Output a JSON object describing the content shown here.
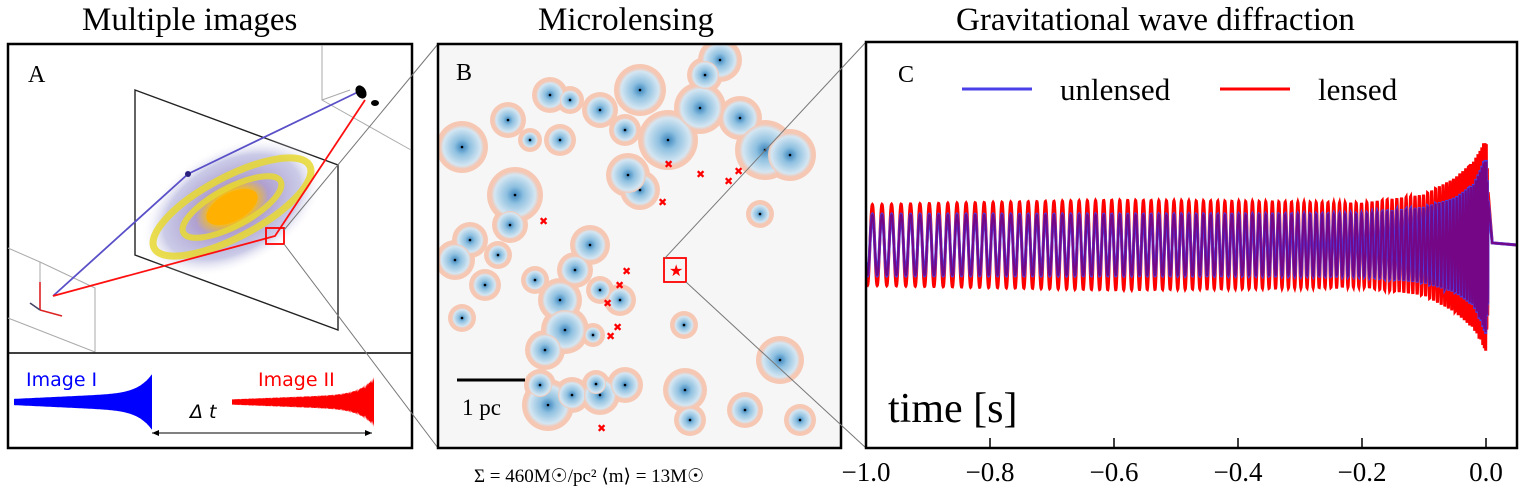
{
  "panels": {
    "a": {
      "title": "Multiple images",
      "letter": "A",
      "image1": "Image I",
      "image2": "Image II",
      "delta": "Δ t"
    },
    "b": {
      "title": "Microlensing",
      "letter": "B",
      "scale": "1 pc",
      "caption": "Σ = 460M☉/pc² ⟨m⟩ = 13M☉"
    },
    "c": {
      "title": "Gravitational wave diffraction",
      "letter": "C"
    }
  },
  "colors": {
    "unlensed": "#4b3fe8",
    "lensed": "#ff0000",
    "overlap": "#7a007a",
    "star_field": "#d6e8f4",
    "caustic": "#f08060"
  },
  "chart_data": {
    "type": "line",
    "title": "Gravitational wave diffraction",
    "xlabel": "time [s]",
    "ylabel": "",
    "xlim": [
      -1.0,
      0.05
    ],
    "xticks": [
      -1.0,
      -0.8,
      -0.6,
      -0.4,
      -0.2,
      0.0
    ],
    "xtick_labels": [
      "−1.0",
      "−0.8",
      "−0.6",
      "−0.4",
      "−0.2",
      "0.0"
    ],
    "legend": {
      "placement": "top",
      "entries": [
        "unlensed",
        "lensed"
      ]
    },
    "series": [
      {
        "name": "unlensed",
        "color": "#4b3fe8",
        "envelope_t": [
          -1.0,
          -0.8,
          -0.6,
          -0.4,
          -0.2,
          -0.1,
          -0.05,
          -0.02,
          0.0,
          0.01,
          0.05
        ],
        "envelope_amp": [
          0.55,
          0.55,
          0.55,
          0.55,
          0.56,
          0.68,
          0.85,
          1.1,
          1.6,
          0.05,
          0.0
        ]
      },
      {
        "name": "lensed",
        "color": "#ff0000",
        "envelope_t": [
          -1.0,
          -0.8,
          -0.6,
          -0.4,
          -0.2,
          -0.1,
          -0.05,
          -0.02,
          0.0,
          0.01,
          0.05
        ],
        "envelope_amp": [
          0.72,
          0.76,
          0.8,
          0.78,
          0.75,
          0.9,
          1.2,
          1.5,
          1.9,
          0.05,
          0.0
        ]
      }
    ]
  }
}
